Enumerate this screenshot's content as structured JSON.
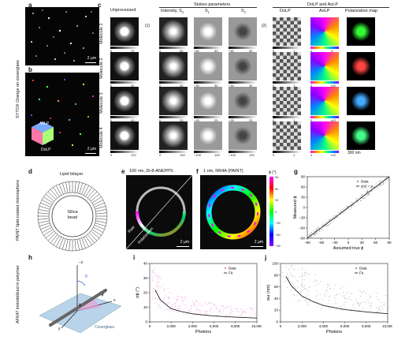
{
  "labels": {
    "a": "a",
    "b": "b",
    "c": "c",
    "d": "d",
    "e": "e",
    "f": "f",
    "g": "g",
    "h": "h",
    "i": "i",
    "j": "j"
  },
  "side": {
    "row1": "SYTOX Orange on coverglass",
    "row2": "PAINT lipid-coated microsphere",
    "row3": "AF647 immobilized in polymer"
  },
  "scalebars": {
    "a": "2 μm",
    "b": "2 μm",
    "polmap": "300 nm",
    "e": "2 μm",
    "f": "2 μm"
  },
  "aolp_legend": {
    "aolp": "AoLP",
    "dolp": "DoLP"
  },
  "c_headers": {
    "unprocessed": "Unprocessed",
    "stokes": "Stokes parameters",
    "intensity": "Intensity, S",
    "s1": "S",
    "s2": "S",
    "dolp_aolp": "DoLP and AoLP",
    "dolp": "DoLP",
    "aolp": "AoLP",
    "polmap": "Polarization map",
    "arrow1": "(1)",
    "arrow2": "(2)"
  },
  "molecules": [
    {
      "name": "Molecule 1",
      "t": [
        "0",
        "70",
        "0",
        "50",
        "−50",
        "50",
        "−50",
        "50",
        "0",
        "1",
        "0",
        "π"
      ]
    },
    {
      "name": "Molecule 2",
      "t": [
        "0",
        "40",
        "0",
        "30",
        "−30",
        "30",
        "−30",
        "30",
        "0",
        "1",
        "0",
        "π/2"
      ]
    },
    {
      "name": "Molecule 3",
      "t": [
        "0",
        "40",
        "0",
        "25",
        "−25",
        "25",
        "−25",
        "25",
        "0",
        "1",
        "0",
        "π/2"
      ]
    },
    {
      "name": "Molecule 4",
      "t": [
        "0",
        "120",
        "0",
        "100",
        "−100",
        "100",
        "−100",
        "100",
        "0",
        "1",
        "0",
        "π/2"
      ]
    }
  ],
  "d": {
    "title": "Lipid bilayer",
    "bead": "Silica bead"
  },
  "e": {
    "title": "100 nm, Di-8-ANEPPS",
    "raw": "Raw",
    "pol": "Polarization"
  },
  "f": {
    "title": "1 nm, NR4A (PAINT)",
    "cbar_title": "ϕ (°)",
    "cbar_ticks": [
      "90",
      "60",
      "30",
      "0",
      "−30",
      "−60",
      "−90"
    ]
  },
  "chart_data": [
    {
      "id": "g",
      "type": "scatter",
      "xlabel": "Assumed true ϕ",
      "ylabel": "Measured ϕ",
      "xlim": [
        -90,
        90
      ],
      "ylim": [
        -90,
        90
      ],
      "xticks": [
        "−90",
        "−60",
        "−30",
        "0",
        "30",
        "60",
        "90"
      ],
      "yticks": [
        "−90",
        "−60",
        "−30",
        "0",
        "30",
        "60",
        "90"
      ],
      "legend": [
        "Data",
        "y(x) = x"
      ],
      "fit": {
        "slope": 1,
        "intercept": 0
      }
    },
    {
      "id": "i",
      "type": "scatter",
      "xlabel": "Photons",
      "ylabel": "σϕ (°)",
      "xlim": [
        0,
        10000
      ],
      "ylim": [
        0,
        40
      ],
      "xticks": [
        "0",
        "2,000",
        "4,000",
        "6,000",
        "8,000",
        "10,000"
      ],
      "yticks": [
        "0",
        "10",
        "20",
        "30",
        "40"
      ],
      "legend": [
        "Data",
        "Fit"
      ],
      "fit": {
        "x": [
          500,
          1000,
          2000,
          3000,
          4000,
          6000,
          8000,
          10000
        ],
        "y": [
          22,
          15,
          9,
          7,
          5.5,
          4,
          3.2,
          2.6
        ]
      }
    },
    {
      "id": "j",
      "type": "scatter",
      "xlabel": "Photons",
      "ylabel": "σω (nm)",
      "xlim": [
        0,
        10000
      ],
      "ylim": [
        0,
        100
      ],
      "xticks": [
        "0",
        "2,000",
        "4,000",
        "6,000",
        "8,000",
        "10,000"
      ],
      "yticks": [
        "0",
        "20",
        "40",
        "60",
        "80",
        "100"
      ],
      "legend": [
        "Data",
        "Fit"
      ],
      "fit": {
        "x": [
          500,
          1000,
          2000,
          3000,
          4000,
          6000,
          8000,
          10000
        ],
        "y": [
          78,
          62,
          44,
          35,
          28,
          21,
          17,
          14
        ]
      }
    }
  ],
  "h": {
    "z": "−z",
    "x": "x",
    "y": "y",
    "theta": "θ",
    "phi": "ϕ",
    "coverglass": "Coverglass"
  }
}
